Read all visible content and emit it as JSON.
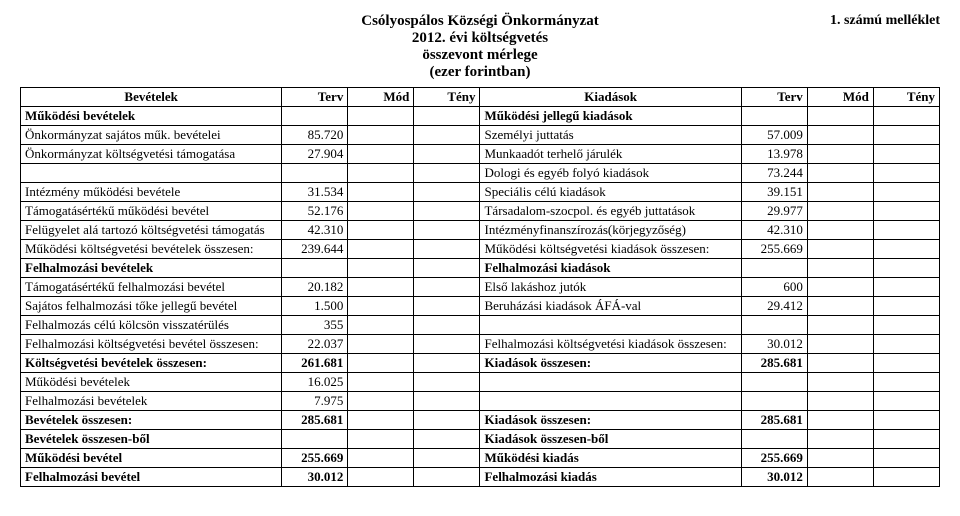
{
  "header": {
    "annex": "1. számú melléklet",
    "title1": "Csólyospálos Községi Önkormányzat",
    "title2": "2012. évi költségvetés",
    "title3": "összevont mérlege",
    "title4": "(ezer forintban)"
  },
  "columns": {
    "left_head": "Bevételek",
    "right_head": "Kiadások",
    "terv": "Terv",
    "mod": "Mód",
    "teny": "Tény"
  },
  "rows": [
    {
      "l": "Működési bevételek",
      "lb": true,
      "lv": [
        "",
        "",
        ""
      ],
      "r": "Működési jellegű kiadások",
      "rb": true,
      "rv": [
        "",
        "",
        ""
      ]
    },
    {
      "l": "Önkormányzat sajátos műk. bevételei",
      "lv": [
        "85.720",
        "",
        ""
      ],
      "r": "Személyi juttatás",
      "rv": [
        "57.009",
        "",
        ""
      ]
    },
    {
      "l": "Önkormányzat költségvetési támogatása",
      "lv": [
        "27.904",
        "",
        ""
      ],
      "r": "Munkaadót terhelő járulék",
      "rv": [
        "13.978",
        "",
        ""
      ]
    },
    {
      "l": "",
      "lv": [
        "",
        "",
        ""
      ],
      "r": "Dologi és egyéb folyó kiadások",
      "rv": [
        "73.244",
        "",
        ""
      ]
    },
    {
      "l": "Intézmény működési bevétele",
      "lv": [
        "31.534",
        "",
        ""
      ],
      "r": "Speciális célú kiadások",
      "rv": [
        "39.151",
        "",
        ""
      ]
    },
    {
      "l": "Támogatásértékű működési bevétel",
      "lv": [
        "52.176",
        "",
        ""
      ],
      "r": "Társadalom-szocpol. és egyéb juttatások",
      "rv": [
        "29.977",
        "",
        ""
      ]
    },
    {
      "l": "Felügyelet alá tartozó költségvetési támogatás",
      "lv": [
        "42.310",
        "",
        ""
      ],
      "r": "Intézményfinanszírozás(körjegyzőség)",
      "rv": [
        "42.310",
        "",
        ""
      ]
    },
    {
      "l": "Működési költségvetési bevételek összesen:",
      "lv": [
        "239.644",
        "",
        ""
      ],
      "r": "Működési költségvetési kiadások összesen:",
      "rv": [
        "255.669",
        "",
        ""
      ]
    },
    {
      "l": "Felhalmozási bevételek",
      "lb": true,
      "lv": [
        "",
        "",
        ""
      ],
      "r": "Felhalmozási kiadások",
      "rb": true,
      "rv": [
        "",
        "",
        ""
      ]
    },
    {
      "l": "Támogatásértékű felhalmozási bevétel",
      "lv": [
        "20.182",
        "",
        ""
      ],
      "r": "Első lakáshoz jutók",
      "rv": [
        "600",
        "",
        ""
      ]
    },
    {
      "l": "Sajátos felhalmozási tőke jellegű bevétel",
      "lv": [
        "1.500",
        "",
        ""
      ],
      "r": "Beruházási kiadások ÁFÁ-val",
      "rv": [
        "29.412",
        "",
        ""
      ]
    },
    {
      "l": "Felhalmozás célú kölcsön visszatérülés",
      "lv": [
        "355",
        "",
        ""
      ],
      "r": "",
      "rv": [
        "",
        "",
        ""
      ]
    },
    {
      "l": "Felhalmozási költségvetési bevétel összesen:",
      "lv": [
        "22.037",
        "",
        ""
      ],
      "r": "Felhalmozási költségvetési kiadások összesen:",
      "rv": [
        "30.012",
        "",
        ""
      ]
    },
    {
      "l": "Költségvetési bevételek összesen:",
      "lb": true,
      "lv": [
        "261.681",
        "",
        ""
      ],
      "r": "Kiadások összesen:",
      "rb": true,
      "rv": [
        "285.681",
        "",
        ""
      ]
    },
    {
      "l": "Működési bevételek",
      "lv": [
        "16.025",
        "",
        ""
      ],
      "r": "",
      "rv": [
        "",
        "",
        ""
      ]
    },
    {
      "l": "Felhalmozási bevételek",
      "lv": [
        "7.975",
        "",
        ""
      ],
      "r": "",
      "rv": [
        "",
        "",
        ""
      ]
    },
    {
      "l": "Bevételek összesen:",
      "lb": true,
      "lv": [
        "285.681",
        "",
        ""
      ],
      "r": "Kiadások összesen:",
      "rb": true,
      "rv": [
        "285.681",
        "",
        ""
      ]
    },
    {
      "l": "Bevételek összesen-ből",
      "lb": true,
      "lv": [
        "",
        "",
        ""
      ],
      "r": "Kiadások összesen-ből",
      "rb": true,
      "rv": [
        "",
        "",
        ""
      ]
    },
    {
      "l": "Működési bevétel",
      "lb": true,
      "lv": [
        "255.669",
        "",
        ""
      ],
      "r": "Működési kiadás",
      "rb": true,
      "rv": [
        "255.669",
        "",
        ""
      ]
    },
    {
      "l": "Felhalmozási bevétel",
      "lb": true,
      "lv": [
        "30.012",
        "",
        ""
      ],
      "r": "Felhalmozási kiadás",
      "rb": true,
      "rv": [
        "30.012",
        "",
        ""
      ]
    }
  ]
}
